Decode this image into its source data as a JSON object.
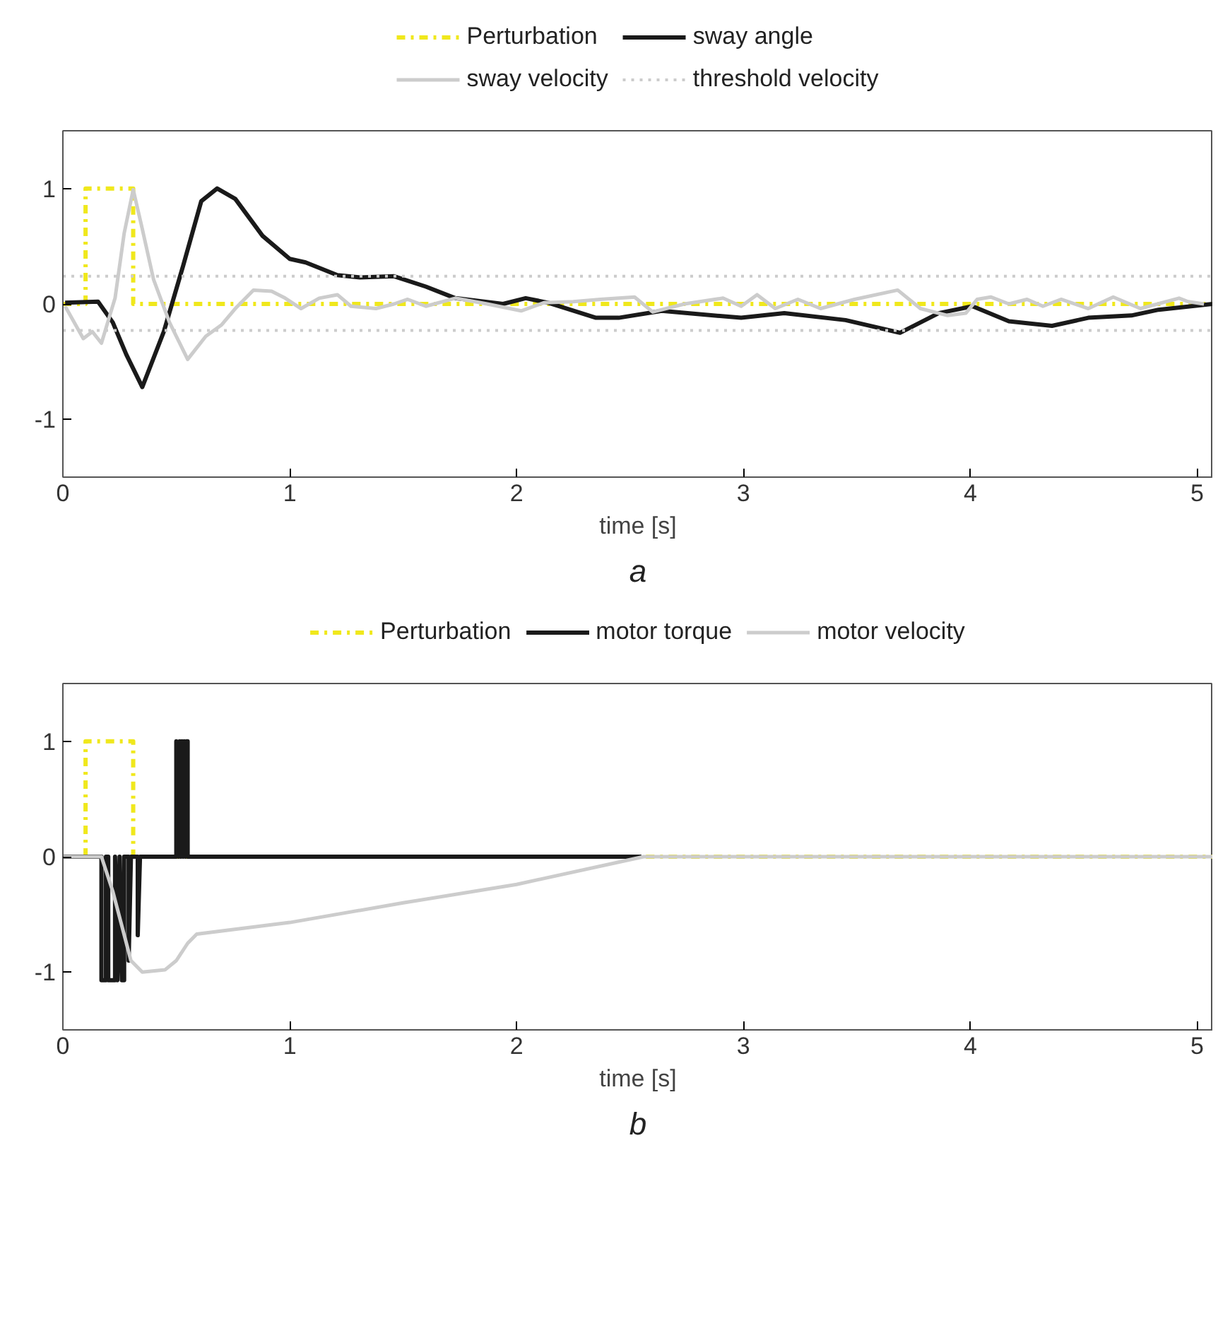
{
  "chart_data": [
    {
      "type": "line",
      "xlabel": "time [s]",
      "xlim": [
        0,
        5.07
      ],
      "ylim": [
        -1.5,
        1.5
      ],
      "xticks": [
        0,
        1,
        2,
        3,
        4,
        5
      ],
      "yticks": [
        -1,
        0,
        1
      ],
      "grid": false,
      "legend": "top",
      "annotations": [
        "a"
      ],
      "series": [
        {
          "name": "Perturbation",
          "color": "#f0e81c",
          "line_style": "dashdot",
          "x": [
            0,
            0.1,
            0.1,
            0.31,
            0.31,
            5.07
          ],
          "values": [
            0,
            0,
            1,
            1,
            0,
            0
          ]
        },
        {
          "name": "sway angle",
          "color": "#1a1a1a",
          "line_style": "solid",
          "x": [
            0.01,
            0.155,
            0.22,
            0.28,
            0.35,
            0.445,
            0.53,
            0.61,
            0.68,
            0.76,
            0.88,
            1.0,
            1.07,
            1.21,
            1.31,
            1.46,
            1.6,
            1.73,
            1.94,
            2.04,
            2.14,
            2.35,
            2.45,
            2.64,
            2.99,
            3.18,
            3.45,
            3.69,
            3.86,
            4.01,
            4.17,
            4.36,
            4.52,
            4.71,
            4.83,
            5.07
          ],
          "values": [
            0.01,
            0.02,
            -0.16,
            -0.44,
            -0.72,
            -0.24,
            0.33,
            0.89,
            1.0,
            0.91,
            0.59,
            0.39,
            0.36,
            0.25,
            0.23,
            0.24,
            0.15,
            0.05,
            0.0,
            0.05,
            0.01,
            -0.12,
            -0.12,
            -0.06,
            -0.12,
            -0.08,
            -0.14,
            -0.25,
            -0.08,
            -0.02,
            -0.15,
            -0.19,
            -0.12,
            -0.1,
            -0.05,
            0.0
          ]
        },
        {
          "name": "sway velocity",
          "color": "#cccccc",
          "line_style": "solid",
          "x": [
            0.01,
            0.09,
            0.13,
            0.17,
            0.23,
            0.27,
            0.31,
            0.35,
            0.4,
            0.47,
            0.55,
            0.63,
            0.7,
            0.76,
            0.84,
            0.92,
            0.98,
            1.05,
            1.13,
            1.21,
            1.27,
            1.38,
            1.46,
            1.52,
            1.6,
            1.73,
            1.87,
            2.02,
            2.12,
            2.25,
            2.37,
            2.52,
            2.6,
            2.74,
            2.91,
            2.99,
            3.06,
            3.14,
            3.24,
            3.34,
            3.49,
            3.68,
            3.78,
            3.9,
            3.98,
            4.03,
            4.09,
            4.17,
            4.25,
            4.32,
            4.4,
            4.52,
            4.63,
            4.75,
            4.92,
            4.96,
            5.03
          ],
          "values": [
            -0.02,
            -0.3,
            -0.24,
            -0.34,
            0.05,
            0.61,
            0.99,
            0.65,
            0.21,
            -0.16,
            -0.48,
            -0.28,
            -0.18,
            -0.04,
            0.12,
            0.11,
            0.05,
            -0.04,
            0.05,
            0.08,
            -0.02,
            -0.04,
            0.0,
            0.04,
            -0.02,
            0.05,
            0.0,
            -0.06,
            0.01,
            0.02,
            0.04,
            0.06,
            -0.07,
            0.0,
            0.05,
            -0.02,
            0.08,
            -0.04,
            0.04,
            -0.04,
            0.04,
            0.12,
            -0.04,
            -0.1,
            -0.08,
            0.04,
            0.06,
            0.0,
            0.04,
            -0.02,
            0.04,
            -0.04,
            0.06,
            -0.04,
            0.05,
            0.02,
            0.0
          ]
        }
      ],
      "ref_lines": [
        {
          "axis": "y",
          "value": 0.24,
          "label": "threshold velocity",
          "color": "#cccccc",
          "line_style": "dotted"
        },
        {
          "axis": "y",
          "value": -0.23,
          "color": "#cccccc",
          "line_style": "dotted"
        }
      ]
    },
    {
      "type": "line",
      "xlabel": "time [s]",
      "xlim": [
        0,
        5.07
      ],
      "ylim": [
        -1.5,
        1.5
      ],
      "xticks": [
        0,
        1,
        2,
        3,
        4,
        5
      ],
      "yticks": [
        -1,
        0,
        1
      ],
      "grid": false,
      "legend": "top",
      "annotations": [
        "b"
      ],
      "series": [
        {
          "name": "Perturbation",
          "color": "#f0e81c",
          "line_style": "dashdot",
          "x": [
            0,
            0.1,
            0.1,
            0.31,
            0.31,
            5.07
          ],
          "values": [
            0,
            0,
            1,
            1,
            0,
            0
          ]
        },
        {
          "name": "motor torque",
          "color": "#1a1a1a",
          "line_style": "solid",
          "x": [
            0,
            0.17,
            0.17,
            0.19,
            0.19,
            0.2,
            0.2,
            0.23,
            0.23,
            0.24,
            0.25,
            0.26,
            0.27,
            0.27,
            0.29,
            0.29,
            0.3,
            0.33,
            0.33,
            0.34,
            0.5,
            0.5,
            0.51,
            0.515,
            0.52,
            0.525,
            0.53,
            0.535,
            0.54,
            0.545,
            0.55,
            0.55,
            2.55
          ],
          "values": [
            0,
            0,
            -1.07,
            -1.07,
            0,
            0,
            -1.07,
            -1.07,
            0,
            -1.07,
            0,
            -1.07,
            -1.07,
            0,
            0,
            -0.9,
            0,
            0,
            -0.68,
            0,
            0,
            1.0,
            0,
            1.0,
            0,
            1.0,
            0,
            1.0,
            0,
            1.0,
            1.0,
            0,
            0
          ]
        },
        {
          "name": "motor velocity",
          "color": "#cccccc",
          "line_style": "solid",
          "x": [
            0,
            0.17,
            0.22,
            0.3,
            0.35,
            0.45,
            0.5,
            0.55,
            0.59,
            1.0,
            1.5,
            2.0,
            2.56,
            5.07
          ],
          "values": [
            0,
            0,
            -0.3,
            -0.9,
            -1.0,
            -0.98,
            -0.9,
            -0.75,
            -0.67,
            -0.57,
            -0.4,
            -0.24,
            0,
            0
          ]
        }
      ]
    }
  ]
}
